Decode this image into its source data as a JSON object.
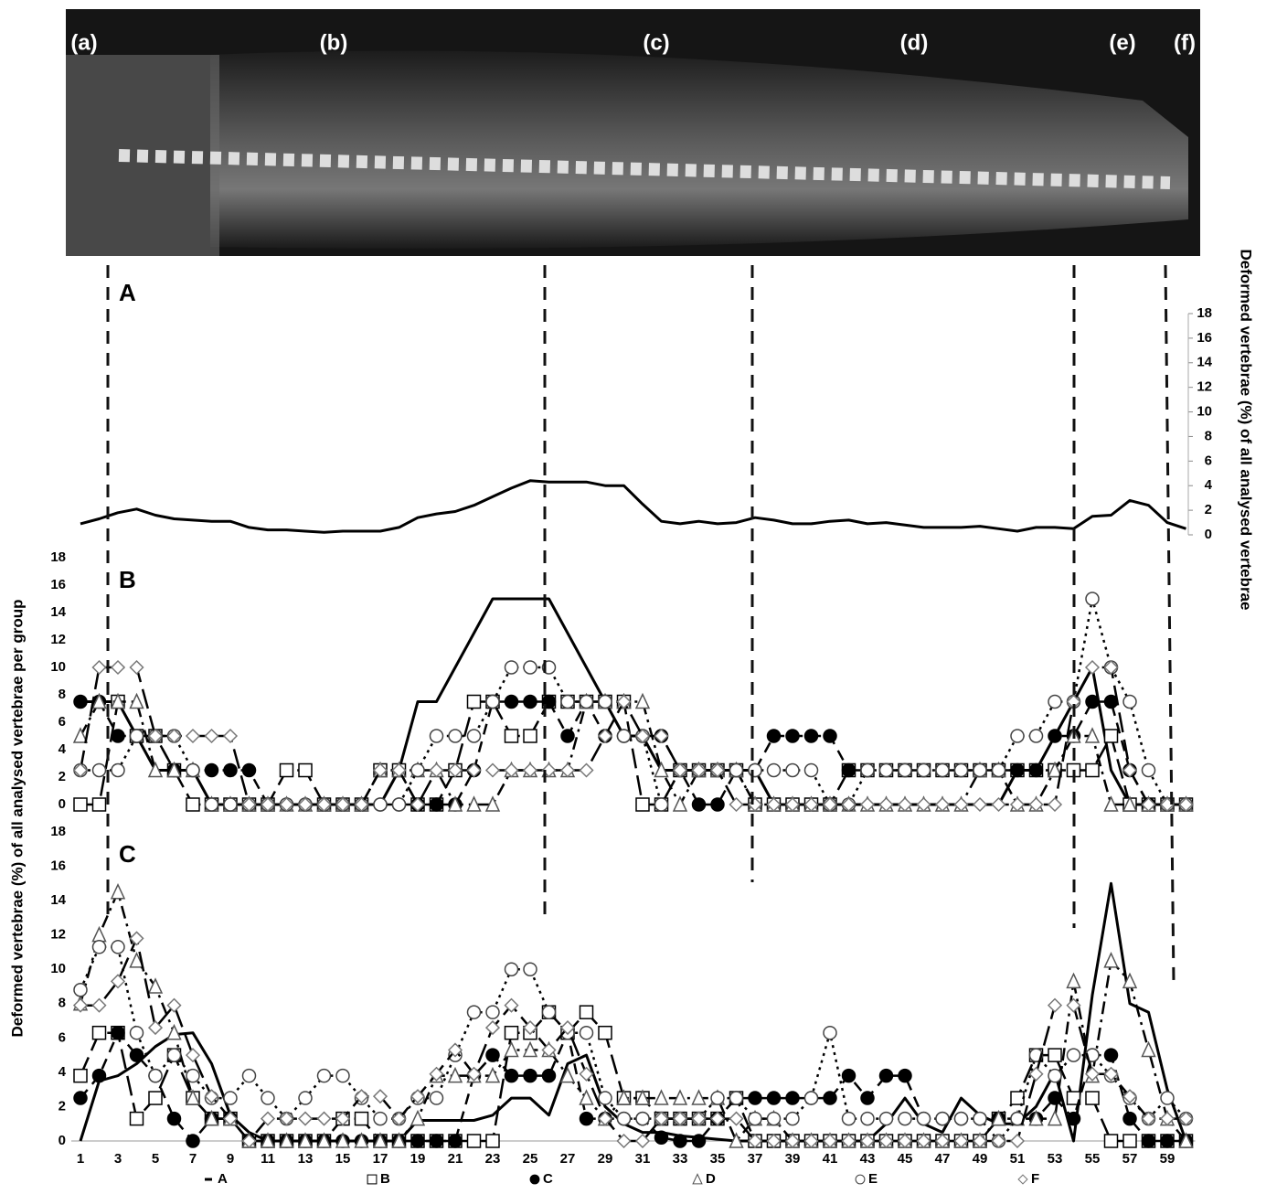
{
  "image": {
    "labels": [
      "(a)",
      "(b)",
      "(c)",
      "(d)",
      "(e)",
      "(f)"
    ]
  },
  "chart_data": [
    {
      "type": "line",
      "title": "A",
      "ylabel": "Deformed vertebrae (%) of all analysed vertebrae",
      "xlim": [
        1,
        60
      ],
      "ylim": [
        0,
        18
      ],
      "yticks": [
        0,
        2,
        4,
        6,
        8,
        10,
        12,
        14,
        16,
        18
      ],
      "series": [
        {
          "color": "#000000",
          "dash": "solid",
          "marker": "none",
          "values": [
            0.9,
            1.3,
            1.8,
            2.1,
            1.6,
            1.3,
            1.2,
            1.1,
            1.1,
            0.6,
            0.4,
            0.4,
            0.3,
            0.2,
            0.3,
            0.3,
            0.3,
            0.6,
            1.4,
            1.7,
            1.9,
            2.4,
            3.1,
            3.8,
            4.4,
            4.3,
            4.3,
            4.3,
            4.0,
            4.0,
            2.5,
            1.1,
            0.9,
            1.1,
            0.9,
            1.0,
            1.4,
            1.2,
            0.9,
            0.9,
            1.1,
            1.2,
            0.9,
            1.0,
            0.8,
            0.6,
            0.6,
            0.6,
            0.7,
            0.5,
            0.3,
            0.6,
            0.6,
            0.5,
            1.5,
            1.6,
            2.8,
            2.4,
            1.0,
            0.5
          ]
        }
      ]
    },
    {
      "type": "line",
      "title": "B",
      "ylabel": "Deformed vertebrae (%) of all analysed vertebrae per group",
      "xlim": [
        1,
        60
      ],
      "ylim": [
        0,
        18
      ],
      "yticks": [
        0,
        2,
        4,
        6,
        8,
        10,
        12,
        14,
        16,
        18
      ],
      "series": [
        {
          "color": "#000000",
          "dash": "solid",
          "marker": "none",
          "values": [
            7.5,
            7.5,
            7.5,
            5,
            2.5,
            2.5,
            2.5,
            0,
            0,
            0,
            0,
            0,
            0,
            0,
            0,
            0,
            0,
            2.5,
            7.5,
            7.5,
            10,
            12.5,
            15,
            15,
            15,
            15,
            12.5,
            10,
            7.5,
            5,
            5,
            2.5,
            2.5,
            2.5,
            2.5,
            2.5,
            2.5,
            0,
            0,
            0,
            0,
            0,
            0,
            0,
            0,
            0,
            0,
            0,
            0,
            0,
            2.5,
            2.5,
            5,
            7.5,
            10,
            2.5,
            0,
            0,
            0,
            0
          ]
        },
        {
          "color": "#000000",
          "dash": "long",
          "marker": "square",
          "values": [
            0,
            0,
            7.5,
            5,
            5,
            2.5,
            0,
            0,
            0,
            0,
            0,
            2.5,
            2.5,
            0,
            0,
            0,
            2.5,
            2.5,
            0,
            0,
            2.5,
            7.5,
            7.5,
            5,
            5,
            7.5,
            7.5,
            7.5,
            7.5,
            7.5,
            0,
            0,
            2.5,
            2.5,
            2.5,
            2.5,
            0,
            0,
            0,
            0,
            0,
            2.5,
            2.5,
            2.5,
            2.5,
            2.5,
            2.5,
            2.5,
            2.5,
            2.5,
            2.5,
            2.5,
            2.5,
            2.5,
            2.5,
            5,
            0,
            0,
            0,
            0
          ]
        },
        {
          "color": "#000000",
          "dash": "dash",
          "marker": "dot",
          "values": [
            7.5,
            7.5,
            5,
            5,
            5,
            2.5,
            2.5,
            2.5,
            2.5,
            2.5,
            0,
            0,
            0,
            0,
            0,
            0,
            0,
            0,
            0,
            0,
            0,
            2.5,
            7.5,
            7.5,
            7.5,
            7.5,
            5,
            7.5,
            5,
            5,
            5,
            5,
            2.5,
            0,
            0,
            2.5,
            2.5,
            5,
            5,
            5,
            5,
            2.5,
            2.5,
            2.5,
            2.5,
            2.5,
            2.5,
            2.5,
            2.5,
            2.5,
            2.5,
            2.5,
            5,
            5,
            7.5,
            7.5,
            2.5,
            0,
            0,
            0
          ]
        },
        {
          "color": "#000000",
          "dash": "dashdot",
          "marker": "triangle",
          "values": [
            5,
            7.5,
            7.5,
            7.5,
            2.5,
            2.5,
            2.5,
            0,
            0,
            0,
            0,
            0,
            0,
            0,
            0,
            0,
            2.5,
            2.5,
            2.5,
            2.5,
            0,
            0,
            0,
            2.5,
            2.5,
            2.5,
            2.5,
            7.5,
            7.5,
            7.5,
            7.5,
            2.5,
            0,
            2.5,
            2.5,
            2.5,
            0,
            0,
            0,
            0,
            0,
            0,
            0,
            0,
            0,
            0,
            0,
            0,
            2.5,
            2.5,
            0,
            0,
            2.5,
            5,
            5,
            0,
            0,
            0,
            0,
            0
          ]
        },
        {
          "color": "#000000",
          "dash": "dotted",
          "marker": "circle",
          "values": [
            2.5,
            2.5,
            2.5,
            5,
            5,
            5,
            2.5,
            0,
            0,
            0,
            0,
            0,
            0,
            0,
            0,
            0,
            0,
            0,
            2.5,
            5,
            5,
            5,
            7.5,
            10,
            10,
            10,
            7.5,
            7.5,
            7.5,
            5,
            5,
            0,
            2.5,
            2.5,
            2.5,
            2.5,
            2.5,
            2.5,
            2.5,
            2.5,
            0,
            0,
            2.5,
            2.5,
            2.5,
            2.5,
            2.5,
            2.5,
            2.5,
            2.5,
            5,
            5,
            7.5,
            7.5,
            15,
            10,
            7.5,
            2.5,
            0,
            0
          ]
        },
        {
          "color": "#000000",
          "dash": "long",
          "marker": "diamond",
          "values": [
            2.5,
            10,
            10,
            10,
            5,
            5,
            5,
            5,
            5,
            0,
            0,
            0,
            0,
            0,
            0,
            0,
            2.5,
            2.5,
            0,
            2.5,
            2.5,
            2.5,
            2.5,
            2.5,
            2.5,
            2.5,
            2.5,
            2.5,
            5,
            7.5,
            5,
            5,
            2.5,
            2.5,
            2.5,
            0,
            0,
            0,
            0,
            0,
            0,
            0,
            0,
            0,
            0,
            0,
            0,
            0,
            0,
            0,
            0,
            0,
            0,
            7.5,
            10,
            10,
            2.5,
            0,
            0,
            0
          ]
        }
      ]
    },
    {
      "type": "line",
      "title": "C",
      "xlim": [
        1,
        60
      ],
      "ylim": [
        0,
        18
      ],
      "yticks": [
        0,
        2,
        4,
        6,
        8,
        10,
        12,
        14,
        16,
        18
      ],
      "xticks": [
        1,
        3,
        5,
        7,
        9,
        11,
        13,
        15,
        17,
        19,
        21,
        23,
        25,
        27,
        29,
        31,
        33,
        35,
        37,
        39,
        41,
        43,
        45,
        47,
        49,
        51,
        53,
        55,
        57,
        59
      ],
      "series": [
        {
          "name": "A",
          "color": "#000000",
          "dash": "solid",
          "marker": "none",
          "values": [
            0,
            3.5,
            3.8,
            4.5,
            5.5,
            6.2,
            6.3,
            4.5,
            1.5,
            0.5,
            0,
            0,
            0,
            0,
            0,
            0,
            0,
            0,
            1.2,
            1.2,
            1.2,
            1.2,
            1.5,
            2.5,
            2.5,
            1.5,
            4.5,
            5,
            2,
            1,
            0.5,
            0.5,
            0.3,
            0.2,
            0.1,
            0,
            0,
            0,
            0,
            0,
            0,
            0,
            0,
            1,
            2.5,
            1,
            0.5,
            2.5,
            1.5,
            1,
            1,
            2,
            4,
            0,
            8.5,
            15,
            8,
            7.5,
            3,
            0
          ]
        },
        {
          "name": "B",
          "color": "#000000",
          "dash": "long",
          "marker": "square",
          "values": [
            3.8,
            6.3,
            6.3,
            1.3,
            2.5,
            5,
            2.5,
            1.3,
            1.3,
            0,
            0,
            0,
            0,
            0,
            1.3,
            1.3,
            0,
            0,
            0,
            0,
            0,
            0,
            0,
            6.3,
            6.3,
            7.5,
            6.3,
            7.5,
            6.3,
            2.5,
            2.5,
            1.3,
            1.3,
            1.3,
            1.3,
            2.5,
            0,
            0,
            0,
            0,
            0,
            0,
            0,
            0,
            0,
            0,
            0,
            0,
            0,
            1.3,
            2.5,
            5,
            5,
            2.5,
            2.5,
            0,
            0,
            0,
            0,
            0
          ]
        },
        {
          "name": "C",
          "color": "#000000",
          "dash": "dash",
          "marker": "dot",
          "values": [
            2.5,
            3.8,
            6.3,
            5,
            3.8,
            1.3,
            0,
            1.3,
            1.3,
            0,
            0,
            0,
            0,
            0,
            0,
            0,
            0,
            0,
            0,
            0,
            0,
            3.8,
            5,
            3.8,
            3.8,
            3.8,
            6.3,
            1.3,
            1.3,
            1.3,
            1.3,
            0.2,
            0,
            0,
            1.3,
            2.5,
            2.5,
            2.5,
            2.5,
            2.5,
            2.5,
            3.8,
            2.5,
            3.8,
            3.8,
            1.3,
            1.3,
            1.3,
            1.3,
            1.3,
            1.3,
            1.3,
            2.5,
            1.3,
            5,
            5,
            1.3,
            0,
            0,
            0
          ]
        },
        {
          "name": "D",
          "color": "#000000",
          "dash": "dashdot",
          "marker": "triangle",
          "values": [
            8,
            12,
            14.5,
            10.5,
            9,
            6.3,
            2.5,
            1.3,
            1.3,
            0,
            0,
            0,
            0,
            0,
            0,
            0,
            0,
            0,
            1.3,
            3.8,
            3.8,
            3.8,
            3.8,
            5.3,
            5.3,
            5.3,
            3.8,
            2.5,
            1.3,
            2.5,
            2.5,
            2.5,
            2.5,
            2.5,
            2.5,
            0,
            1.3,
            1.3,
            0,
            0,
            0,
            0,
            0,
            0,
            0,
            0,
            0,
            0,
            0,
            1.3,
            1.3,
            1.3,
            1.3,
            9.3,
            3.8,
            10.5,
            9.3,
            5.3,
            1.3,
            0
          ]
        },
        {
          "name": "E",
          "color": "#000000",
          "dash": "dotted",
          "marker": "circle",
          "values": [
            8.8,
            11.3,
            11.3,
            6.3,
            3.8,
            5,
            3.8,
            2.5,
            2.5,
            3.8,
            2.5,
            1.3,
            2.5,
            3.8,
            3.8,
            2.5,
            1.3,
            1.3,
            2.5,
            2.5,
            5,
            7.5,
            7.5,
            10,
            10,
            7.5,
            6.3,
            6.3,
            2.5,
            1.3,
            1.3,
            1.3,
            1.3,
            1.3,
            2.5,
            2.5,
            1.3,
            1.3,
            1.3,
            2.5,
            6.3,
            1.3,
            1.3,
            1.3,
            1.3,
            1.3,
            1.3,
            1.3,
            1.3,
            0,
            1.3,
            5,
            3.8,
            5,
            5,
            3.8,
            2.5,
            1.3,
            2.5,
            1.3
          ]
        },
        {
          "name": "F",
          "color": "#000000",
          "dash": "long",
          "marker": "diamond",
          "values": [
            7.9,
            7.9,
            9.3,
            11.8,
            6.6,
            7.9,
            5,
            2.6,
            1.3,
            0,
            1.3,
            1.3,
            1.3,
            1.3,
            1.3,
            2.6,
            2.6,
            1.3,
            2.6,
            3.9,
            5.3,
            3.9,
            6.6,
            7.9,
            6.6,
            5.3,
            6.6,
            3.9,
            1.3,
            0,
            0,
            1.3,
            1.3,
            1.3,
            1.3,
            1.3,
            0,
            0,
            0,
            0,
            0,
            0,
            0,
            0,
            0,
            0,
            0,
            0,
            0,
            0,
            0,
            3.9,
            7.9,
            7.9,
            3.9,
            3.9,
            2.6,
            1.3,
            1.3,
            1.3
          ]
        }
      ]
    }
  ]
}
